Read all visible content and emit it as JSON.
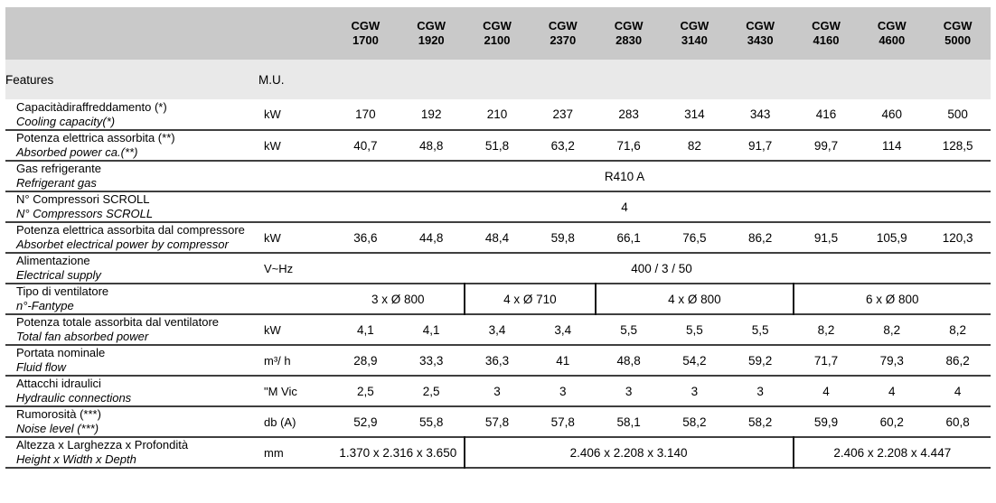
{
  "header": {
    "features_label": "Features",
    "mu_label": "M.U.",
    "models": [
      "CGW 1700",
      "CGW 1920",
      "CGW 2100",
      "CGW 2370",
      "CGW 2830",
      "CGW 3140",
      "CGW 3430",
      "CGW 4160",
      "CGW 4600",
      "CGW 5000"
    ]
  },
  "table": {
    "rows": [
      {
        "label_it": "Capacitàdiraffreddamento (*)",
        "label_en": "Cooling capacity(*)",
        "unit": "kW",
        "values": [
          "170",
          "192",
          "210",
          "237",
          "283",
          "314",
          "343",
          "416",
          "460",
          "500"
        ]
      },
      {
        "label_it": "Potenza elettrica assorbita (**)",
        "label_en": "Absorbed power ca.(**)",
        "unit": "kW",
        "values": [
          "40,7",
          "48,8",
          "51,8",
          "63,2",
          "71,6",
          "82",
          "91,7",
          "99,7",
          "114",
          "128,5"
        ]
      },
      {
        "label_it": "Gas refrigerante",
        "label_en": "Refrigerant gas",
        "unit": "",
        "groups": [
          {
            "text": "R410 A",
            "span": 10
          }
        ]
      },
      {
        "label_it": "N° Compressori SCROLL",
        "label_en": "N° Compressors SCROLL",
        "unit": "",
        "groups": [
          {
            "text": "4",
            "span": 10
          }
        ]
      },
      {
        "label_it": "Potenza elettrica assorbita dal compressore",
        "label_en": "Absorbet electrical power by compressor",
        "unit": "kW",
        "values": [
          "36,6",
          "44,8",
          "48,4",
          "59,8",
          "66,1",
          "76,5",
          "86,2",
          "91,5",
          "105,9",
          "120,3"
        ]
      },
      {
        "label_it": "Alimentazione",
        "label_en": "Electrical supply",
        "unit": "V~Hz",
        "groups": [
          {
            "text": "400 / 3 / 50",
            "span": 10
          }
        ]
      },
      {
        "label_it": "Tipo di ventilatore",
        "label_en": "n°-Fantype",
        "unit": "",
        "groups": [
          {
            "text": "3 x Ø 800",
            "span": 2
          },
          {
            "text": "4 x Ø 710",
            "span": 2
          },
          {
            "text": "4 x Ø 800",
            "span": 3
          },
          {
            "text": "6 x Ø 800",
            "span": 3
          }
        ]
      },
      {
        "label_it": "Potenza totale assorbita dal ventilatore",
        "label_en": "Total fan absorbed power",
        "unit": "kW",
        "values": [
          "4,1",
          "4,1",
          "3,4",
          "3,4",
          "5,5",
          "5,5",
          "5,5",
          "8,2",
          "8,2",
          "8,2"
        ]
      },
      {
        "label_it": "Portata nominale",
        "label_en": "Fluid flow",
        "unit": "m³/ h",
        "values": [
          "28,9",
          "33,3",
          "36,3",
          "41",
          "48,8",
          "54,2",
          "59,2",
          "71,7",
          "79,3",
          "86,2"
        ]
      },
      {
        "label_it": "Attacchi idraulici",
        "label_en": "Hydraulic connections",
        "unit": "\"M Vic",
        "values": [
          "2,5",
          "2,5",
          "3",
          "3",
          "3",
          "3",
          "3",
          "4",
          "4",
          "4"
        ]
      },
      {
        "label_it": "Rumorosità (***)",
        "label_en": "Noise level (***)",
        "unit": "db (A)",
        "values": [
          "52,9",
          "55,8",
          "57,8",
          "57,8",
          "58,1",
          "58,2",
          "58,2",
          "59,9",
          "60,2",
          "60,8"
        ]
      },
      {
        "label_it": "Altezza x Larghezza x Profondità",
        "label_en": "Height x Width x Depth",
        "unit": "mm",
        "groups": [
          {
            "text": "1.370 x 2.316 x 3.650",
            "span": 2
          },
          {
            "text": "2.406 x 2.208 x 3.140",
            "span": 5
          },
          {
            "text": "2.406 x 2.208 x 4.447",
            "span": 3
          }
        ]
      }
    ]
  }
}
